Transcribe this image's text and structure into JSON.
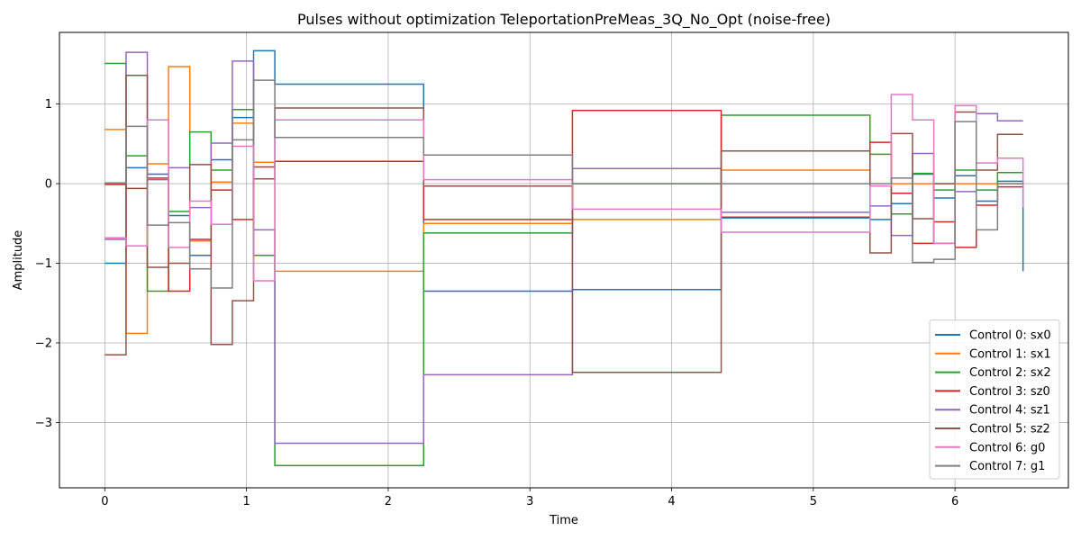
{
  "chart_data": {
    "type": "line",
    "step": "post",
    "title": "Pulses without optimization TeleportationPreMeas_3Q_No_Opt (noise-free)",
    "xlabel": "Time",
    "ylabel": "Amplitude",
    "xlim": [
      -0.32,
      6.8
    ],
    "ylim": [
      -3.82,
      1.9
    ],
    "xticks": [
      0,
      1,
      2,
      3,
      4,
      5,
      6
    ],
    "yticks": [
      -3,
      -2,
      -1,
      0,
      1
    ],
    "grid": true,
    "legend_position": "lower right",
    "x": [
      0,
      0.15,
      0.3,
      0.45,
      0.6,
      0.75,
      0.9,
      1.05,
      1.2,
      2.25,
      3.3,
      4.35,
      5.4,
      5.55,
      5.7,
      5.85,
      6.0,
      6.15,
      6.3,
      6.48
    ],
    "series": [
      {
        "name": "Control 0: sx0",
        "color": "#1f77b4",
        "values": [
          -1.0,
          0.2,
          0.12,
          -0.4,
          -0.9,
          0.3,
          0.83,
          1.67,
          1.25,
          -1.35,
          -1.33,
          -0.43,
          -0.45,
          -0.25,
          0.12,
          -0.18,
          0.1,
          -0.22,
          0.03,
          -1.1
        ]
      },
      {
        "name": "Control 1: sx1",
        "color": "#ff7f0e",
        "values": [
          0.68,
          -1.88,
          0.25,
          1.47,
          -0.72,
          0.02,
          0.76,
          0.27,
          -1.1,
          -0.5,
          -0.45,
          0.17,
          -0.03,
          0.0,
          0.0,
          0.0,
          0.0,
          0.0,
          0.0,
          0.0
        ]
      },
      {
        "name": "Control 2: sx2",
        "color": "#2ca02c",
        "values": [
          1.51,
          0.35,
          -1.35,
          -0.35,
          0.65,
          0.17,
          0.93,
          -0.9,
          -3.54,
          -0.62,
          0.0,
          0.86,
          0.37,
          -0.38,
          0.13,
          -0.08,
          0.17,
          -0.08,
          0.14,
          0.14
        ]
      },
      {
        "name": "Control 3: sz0",
        "color": "#d62728",
        "values": [
          -0.01,
          -0.06,
          0.07,
          -1.35,
          -0.7,
          -0.08,
          -0.45,
          0.21,
          0.28,
          -0.45,
          0.92,
          -0.42,
          0.52,
          -0.12,
          -0.75,
          -0.48,
          -0.8,
          -0.27,
          -0.04,
          -0.04
        ]
      },
      {
        "name": "Control 4: sz1",
        "color": "#9467bd",
        "values": [
          -0.7,
          1.65,
          0.05,
          0.2,
          -0.3,
          0.51,
          1.54,
          -0.58,
          -3.26,
          -2.4,
          0.19,
          -0.36,
          -0.28,
          -0.65,
          0.38,
          -0.75,
          -0.1,
          0.88,
          0.79,
          0.79
        ]
      },
      {
        "name": "Control 5: sz2",
        "color": "#8c564b",
        "values": [
          -2.15,
          1.36,
          -1.05,
          -1.0,
          0.24,
          -2.02,
          -1.47,
          0.06,
          0.95,
          -0.03,
          -2.37,
          0.41,
          -0.87,
          0.63,
          -0.44,
          0.0,
          0.9,
          0.17,
          0.62,
          0.62
        ]
      },
      {
        "name": "Control 6: g0",
        "color": "#e377c2",
        "values": [
          -0.68,
          -0.78,
          0.8,
          -0.8,
          -0.22,
          -0.51,
          0.47,
          -1.22,
          0.8,
          0.05,
          -0.32,
          -0.61,
          -0.03,
          1.12,
          0.8,
          -0.75,
          0.98,
          0.26,
          0.32,
          -0.3
        ]
      },
      {
        "name": "Control 7: g1",
        "color": "#7f7f7f",
        "values": [
          0.01,
          0.72,
          -0.52,
          -0.49,
          -1.07,
          -1.31,
          0.55,
          1.3,
          0.58,
          0.36,
          0.0,
          0.0,
          0.0,
          0.07,
          -0.99,
          -0.95,
          0.78,
          -0.58,
          0.0,
          0.0
        ]
      }
    ]
  }
}
